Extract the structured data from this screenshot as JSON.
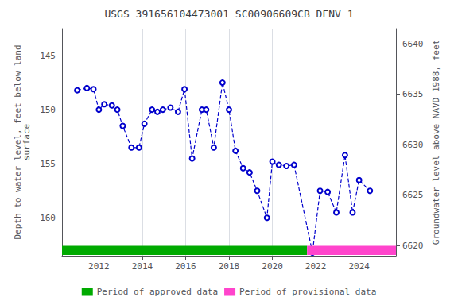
{
  "chart_data": {
    "type": "line",
    "title": "USGS 391656104473001 SC00906609CB DENV 1",
    "ylabel": "Depth to water level, feet below land\nsurface",
    "y2label": "Groundwater level above NAVD 1988, feet",
    "xlim": [
      2010.3,
      2025.7
    ],
    "xticks": [
      2012,
      2014,
      2016,
      2018,
      2020,
      2022,
      2024
    ],
    "ylim": [
      163.5,
      142.5
    ],
    "yticks": [
      145,
      150,
      155,
      160
    ],
    "y2lim": [
      6619.0,
      6641.5
    ],
    "y2ticks": [
      6620,
      6625,
      6630,
      6635,
      6640
    ],
    "grid": true,
    "legend": "bottom",
    "x": [
      2011.0,
      2011.45,
      2011.75,
      2012.0,
      2012.25,
      2012.6,
      2012.85,
      2013.1,
      2013.5,
      2013.85,
      2014.1,
      2014.45,
      2014.7,
      2014.95,
      2015.3,
      2015.65,
      2015.95,
      2016.3,
      2016.75,
      2016.95,
      2017.3,
      2017.7,
      2018.0,
      2018.3,
      2018.65,
      2018.95,
      2019.3,
      2019.75,
      2020.0,
      2020.3,
      2020.65,
      2021.0,
      2021.85,
      2022.2,
      2022.55,
      2022.95,
      2023.35,
      2023.7,
      2024.0,
      2024.5
    ],
    "series": [
      {
        "color": "#0000cc",
        "marker": "circle",
        "line_style": "dashed",
        "values": [
          148.2,
          148.0,
          148.1,
          150.0,
          149.5,
          149.6,
          150.0,
          151.5,
          153.5,
          153.5,
          151.3,
          150.0,
          150.2,
          150.0,
          149.8,
          150.2,
          148.1,
          154.5,
          150.0,
          150.0,
          153.5,
          147.5,
          150.0,
          153.8,
          155.4,
          155.8,
          157.5,
          160.0,
          154.8,
          155.1,
          155.2,
          155.1,
          163.2,
          157.5,
          157.6,
          159.5,
          154.2,
          159.5,
          156.5,
          157.5
        ]
      }
    ],
    "periods": [
      {
        "label": "Period of approved data",
        "start": 2010.3,
        "end": 2021.6,
        "color": "#00aa00"
      },
      {
        "label": "Period of provisional data",
        "start": 2021.6,
        "end": 2025.7,
        "color": "#ff44cc"
      }
    ]
  }
}
